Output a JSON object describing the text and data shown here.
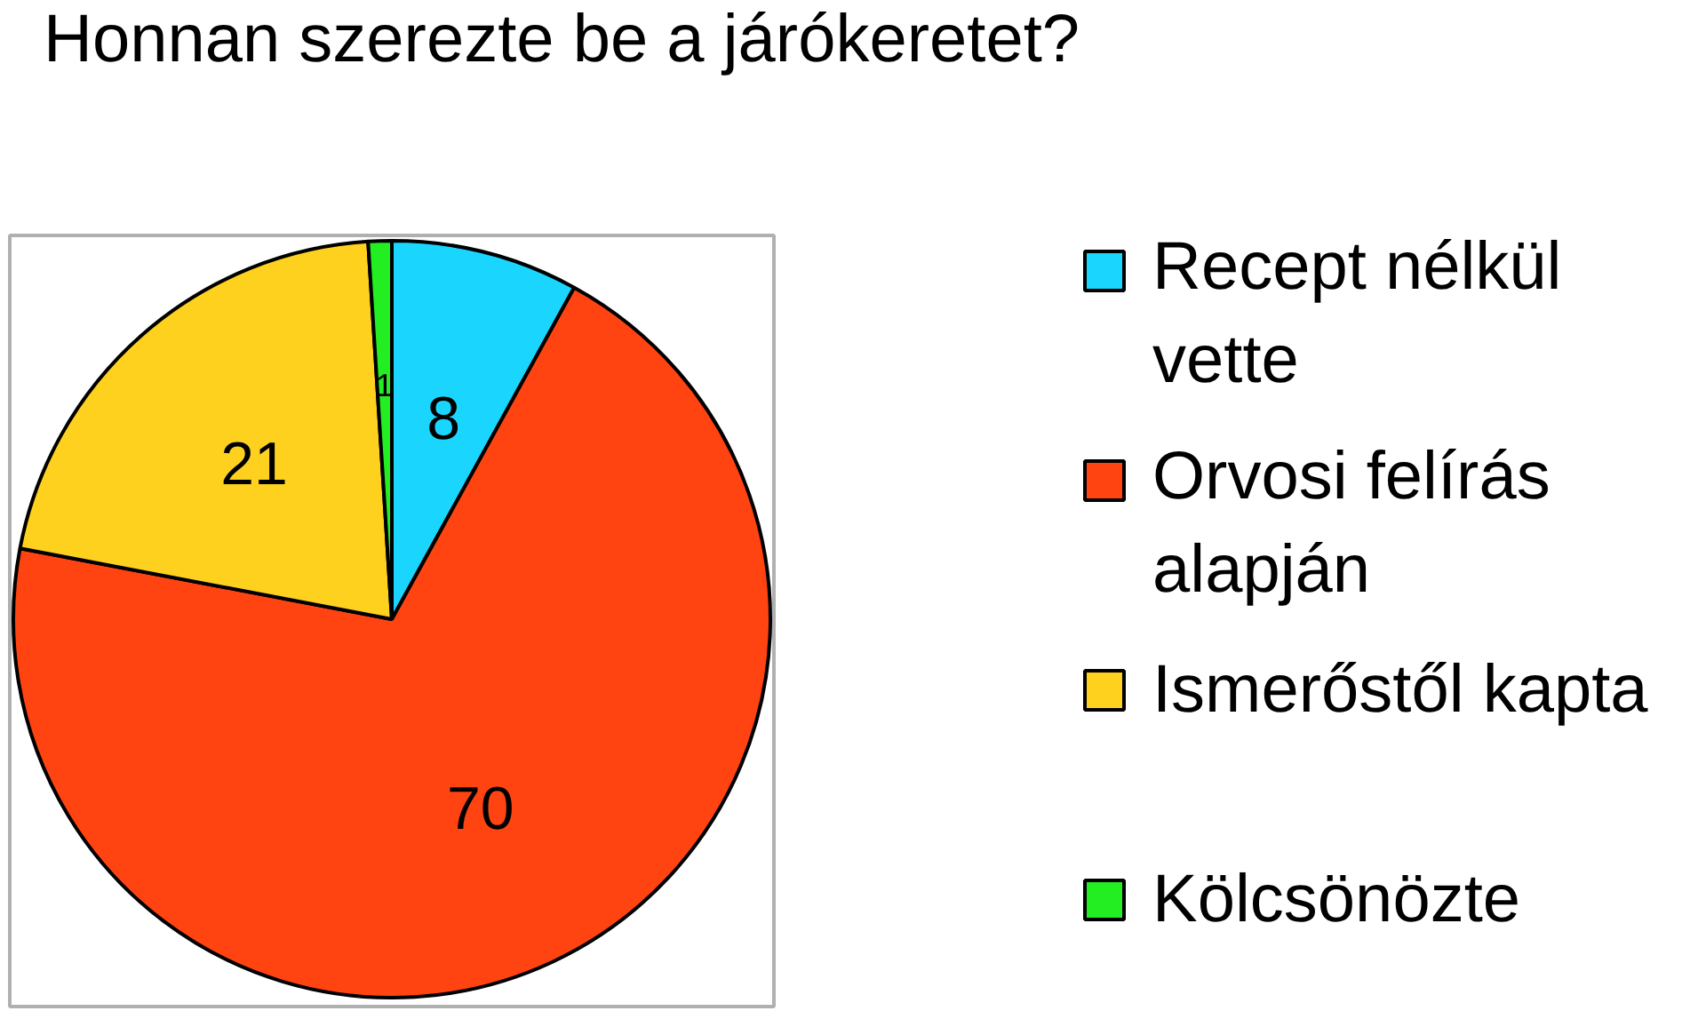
{
  "chart_data": {
    "type": "pie",
    "title": "Honnan szerezte be a járókeretet?",
    "categories": [
      "Recept nélkül vette",
      "Orvosi felírás alapján",
      "Ismerőstől kapta",
      "Kölcsönözte"
    ],
    "values": [
      8,
      70,
      21,
      1
    ],
    "colors": [
      "#1ad6ff",
      "#ff4411",
      "#ffd11f",
      "#22ee22"
    ],
    "data_labels": true,
    "legend": "right"
  }
}
